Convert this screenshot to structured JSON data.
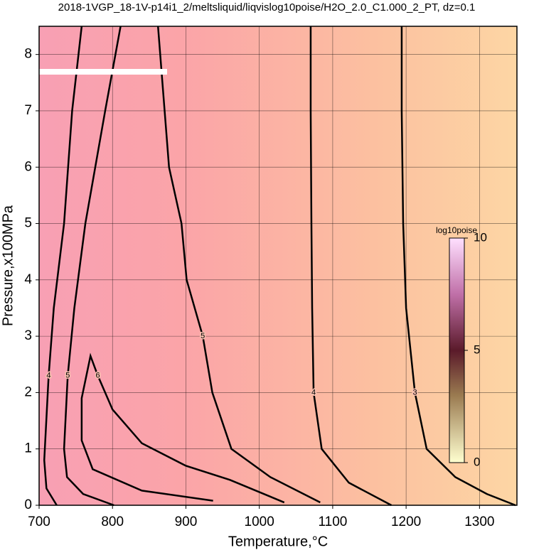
{
  "chart_data": {
    "type": "contour",
    "title": "2018-1VGP_18-1V-p14i1_2/meltsliquid/liqvislog10poise/H2O_2.0_C1.000_2_PT, dz=0.1",
    "x_label": "Temperature,°C",
    "y_label": "Pressure,x100MPa",
    "xlim": [
      700,
      1351
    ],
    "ylim": [
      0,
      8.5
    ],
    "xticks": [
      700,
      800,
      900,
      1000,
      1100,
      1200,
      1300
    ],
    "yticks": [
      0,
      1,
      2,
      3,
      4,
      5,
      6,
      7,
      8
    ],
    "grid": true,
    "contours": [
      {
        "level": 3,
        "x": [
          1194,
          1194,
          1196,
          1200,
          1212,
          1228,
          1267,
          1310,
          1349
        ],
        "y": [
          8.5,
          7,
          5,
          3.5,
          2,
          1,
          0.5,
          0.2,
          0
        ]
      },
      {
        "level": 4,
        "x": [
          1070,
          1070,
          1071,
          1072,
          1074,
          1085,
          1122,
          1180
        ],
        "y": [
          8.5,
          7,
          5,
          3.5,
          2,
          1,
          0.4,
          0
        ]
      },
      {
        "level": 5,
        "x": [
          862,
          877,
          894,
          901,
          923,
          936,
          962,
          1015,
          1083
        ],
        "y": [
          8.5,
          6,
          5,
          4,
          3,
          2,
          1,
          0.5,
          0.05
        ]
      },
      {
        "level": 5,
        "x": [
          811,
          790,
          763,
          748,
          739,
          734,
          738,
          760,
          802
        ],
        "y": [
          8.5,
          7,
          5,
          3.5,
          2.3,
          1,
          0.5,
          0.2,
          0
        ]
      },
      {
        "level": 6,
        "x": [
          937,
          840,
          773,
          758,
          758,
          770,
          780,
          800,
          840,
          900,
          960,
          1034
        ],
        "y": [
          0.08,
          0.26,
          0.64,
          1.15,
          1.9,
          2.65,
          2.3,
          1.7,
          1.1,
          0.7,
          0.45,
          0.05
        ]
      },
      {
        "level": 4,
        "x": [
          758,
          745,
          734,
          720,
          713,
          707,
          710,
          724
        ],
        "y": [
          8.5,
          7,
          5,
          3.5,
          2.3,
          0.8,
          0.3,
          0
        ]
      }
    ],
    "colorbar": {
      "title": "log10poise",
      "lim": [
        0,
        10
      ],
      "ticks": [
        0,
        5,
        10
      ]
    }
  }
}
